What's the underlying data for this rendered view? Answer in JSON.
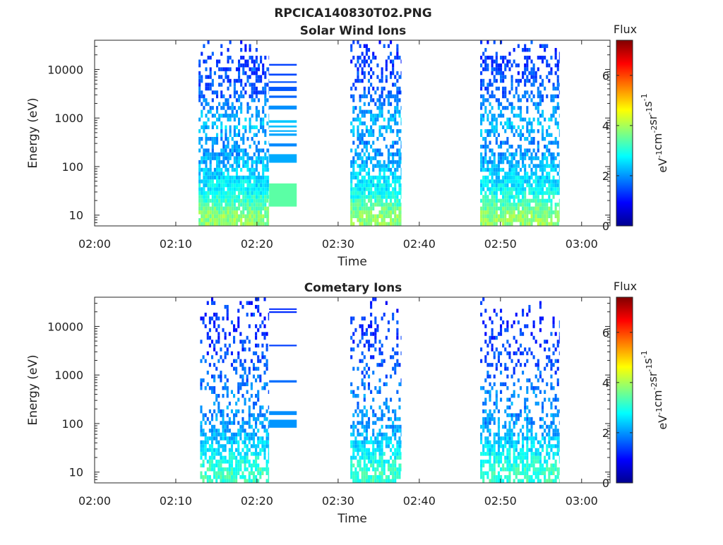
{
  "figure_title": "RPCICA140830T02.PNG",
  "colors": {
    "axis": "#262626",
    "colormap": [
      "#00008f",
      "#0000ff",
      "#0080ff",
      "#00ffff",
      "#80ff80",
      "#ffff00",
      "#ff8000",
      "#ff0000",
      "#800000"
    ]
  },
  "chart_data": [
    {
      "type": "heatmap",
      "title": "Solar Wind Ions",
      "xlabel": "Time",
      "ylabel": "Energy (eV)",
      "x_ticks": [
        "02:00",
        "02:10",
        "02:20",
        "02:30",
        "02:40",
        "02:50",
        "03:00"
      ],
      "xlim_minutes": [
        0,
        63.5
      ],
      "y_scale": "log",
      "ylim": [
        6,
        40000
      ],
      "y_ticks": [
        10,
        100,
        1000,
        10000
      ],
      "y_tick_labels": [
        "10",
        "100",
        "1000",
        "10000"
      ],
      "colorbar": {
        "label_top": "Flux",
        "unit": "eV-1cm-2sr-1s-1",
        "range": [
          0,
          7.4
        ],
        "ticks": [
          0,
          2,
          4,
          6
        ],
        "tick_labels": [
          "0",
          "2",
          "4",
          "6"
        ]
      },
      "bursts": [
        {
          "start_min": 12.8,
          "end_min": 21.5,
          "density": 0.55
        },
        {
          "start_min": 31.5,
          "end_min": 37.8,
          "density": 0.45
        },
        {
          "start_min": 47.5,
          "end_min": 57.3,
          "density": 0.5
        }
      ],
      "continuous_segment": {
        "start_min": 21.5,
        "end_min": 24.9
      },
      "flux_by_energy": [
        {
          "energy_ev": 10,
          "flux": 3.8
        },
        {
          "energy_ev": 30,
          "flux": 2.8
        },
        {
          "energy_ev": 100,
          "flux": 2.3
        },
        {
          "energy_ev": 300,
          "flux": 1.9
        },
        {
          "energy_ev": 800,
          "flux": 2.4
        },
        {
          "energy_ev": 3000,
          "flux": 1.6
        },
        {
          "energy_ev": 10000,
          "flux": 1.4
        },
        {
          "energy_ev": 30000,
          "flux": 1.3
        }
      ]
    },
    {
      "type": "heatmap",
      "title": "Cometary Ions",
      "xlabel": "Time",
      "ylabel": "Energy (eV)",
      "x_ticks": [
        "02:00",
        "02:10",
        "02:20",
        "02:30",
        "02:40",
        "02:50",
        "03:00"
      ],
      "xlim_minutes": [
        0,
        63.5
      ],
      "y_scale": "log",
      "ylim": [
        6,
        40000
      ],
      "y_ticks": [
        10,
        100,
        1000,
        10000
      ],
      "y_tick_labels": [
        "10",
        "100",
        "1000",
        "10000"
      ],
      "colorbar": {
        "label_top": "Flux",
        "unit": "eV-1cm-2sr-1s-1",
        "range": [
          0,
          7.4
        ],
        "ticks": [
          0,
          2,
          4,
          6
        ],
        "tick_labels": [
          "0",
          "2",
          "4",
          "6"
        ]
      },
      "bursts": [
        {
          "start_min": 13.0,
          "end_min": 21.5,
          "density": 0.3
        },
        {
          "start_min": 31.5,
          "end_min": 37.8,
          "density": 0.25
        },
        {
          "start_min": 47.5,
          "end_min": 57.3,
          "density": 0.28
        }
      ],
      "continuous_segment": {
        "start_min": 21.5,
        "end_min": 24.9
      },
      "flux_by_energy": [
        {
          "energy_ev": 10,
          "flux": 3.2
        },
        {
          "energy_ev": 30,
          "flux": 2.6
        },
        {
          "energy_ev": 100,
          "flux": 2.0
        },
        {
          "energy_ev": 300,
          "flux": 1.9
        },
        {
          "energy_ev": 800,
          "flux": 1.7
        },
        {
          "energy_ev": 3000,
          "flux": 1.4
        },
        {
          "energy_ev": 10000,
          "flux": 1.3
        },
        {
          "energy_ev": 30000,
          "flux": 1.2
        }
      ]
    }
  ]
}
